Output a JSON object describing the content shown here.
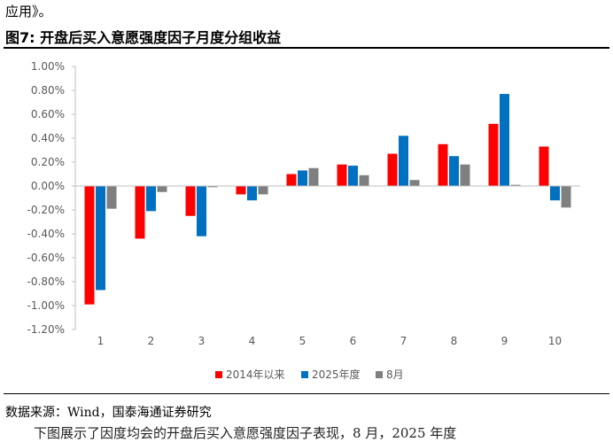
{
  "header": {
    "top_text": "应用》。",
    "figure_title": "图7:  开盘后买入意愿强度因子月度分组收益"
  },
  "footer": {
    "source": "数据来源：Wind，国泰海通证券研究",
    "cut_line": "下图展示了因度均会的开盘后买入意愿强度因子表现，8 月，2025 年度"
  },
  "chart_data": {
    "type": "bar",
    "categories": [
      "1",
      "2",
      "3",
      "4",
      "5",
      "6",
      "7",
      "8",
      "9",
      "10"
    ],
    "series": [
      {
        "name": "2014年以来",
        "color": "#ff0000",
        "values": [
          -0.99,
          -0.44,
          -0.25,
          -0.07,
          0.1,
          0.18,
          0.27,
          0.35,
          0.52,
          0.33
        ]
      },
      {
        "name": "2025年度",
        "color": "#0070c0",
        "values": [
          -0.87,
          -0.21,
          -0.42,
          -0.12,
          0.13,
          0.17,
          0.42,
          0.25,
          0.77,
          -0.12
        ]
      },
      {
        "name": "8月",
        "color": "#7f7f7f",
        "values": [
          -0.19,
          -0.05,
          -0.01,
          -0.07,
          0.15,
          0.09,
          0.05,
          0.18,
          0.01,
          -0.18
        ]
      }
    ],
    "yticks": [
      "1.00%",
      "0.80%",
      "0.60%",
      "0.40%",
      "0.20%",
      "0.00%",
      "-0.20%",
      "-0.40%",
      "-0.60%",
      "-0.80%",
      "-1.00%",
      "-1.20%"
    ],
    "ylim": [
      -1.2,
      1.0
    ],
    "ylabel": "",
    "xlabel": "",
    "grid": false,
    "legend_position": "bottom"
  }
}
